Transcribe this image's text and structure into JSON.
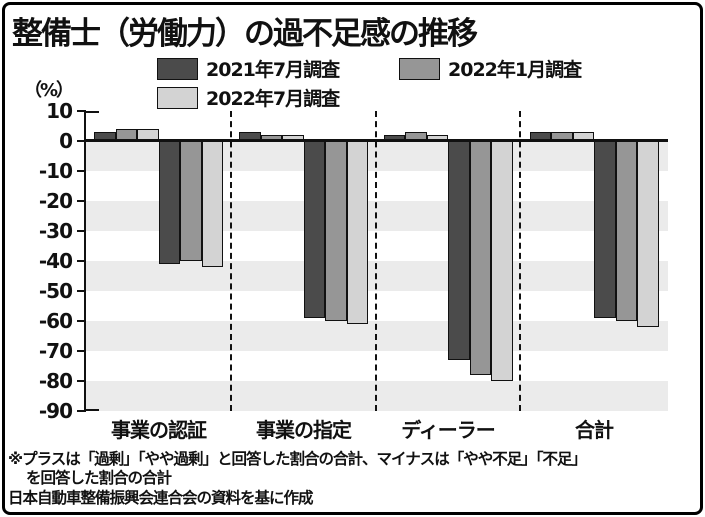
{
  "title": "整備士（労働力）の過不足感の推移",
  "y_unit_label": "（%）",
  "notes": {
    "line1": "※プラスは「過剰」「やや過剰」と回答した割合の合計、マイナスは「やや不足」「不足」",
    "line2": "を回答した割合の合計",
    "source": "日本自動車整備振興会連合会の資料を基に作成"
  },
  "chart_data": {
    "type": "bar",
    "title": "整備士（労働力）の過不足感の推移",
    "ylabel": "（%）",
    "ylim": [
      -90,
      10
    ],
    "ytick_step": 10,
    "grid": "alternating horizontal gray bands below zero",
    "legend_position": "top",
    "band_color": "#ebebeb",
    "axis_color": "#111111",
    "categories": [
      "事業の認証",
      "事業の指定",
      "ディーラー",
      "合計"
    ],
    "series": [
      {
        "name": "2021年7月調査",
        "color": "#4b4b4b",
        "positive": [
          3,
          3,
          2,
          3
        ],
        "negative": [
          -41,
          -59,
          -73,
          -59
        ]
      },
      {
        "name": "2022年1月調査",
        "color": "#969696",
        "positive": [
          4,
          2,
          3,
          3
        ],
        "negative": [
          -40,
          -60,
          -78,
          -60
        ]
      },
      {
        "name": "2022年7月調査",
        "color": "#d3d3d3",
        "positive": [
          4,
          2,
          2,
          3
        ],
        "negative": [
          -42,
          -61,
          -80,
          -62
        ]
      }
    ],
    "footnote": "※プラスは「過剰」「やや過剰」と回答した割合の合計、マイナスは「やや不足」「不足」を回答した割合の合計",
    "source": "日本自動車整備振興会連合会の資料を基に作成"
  }
}
